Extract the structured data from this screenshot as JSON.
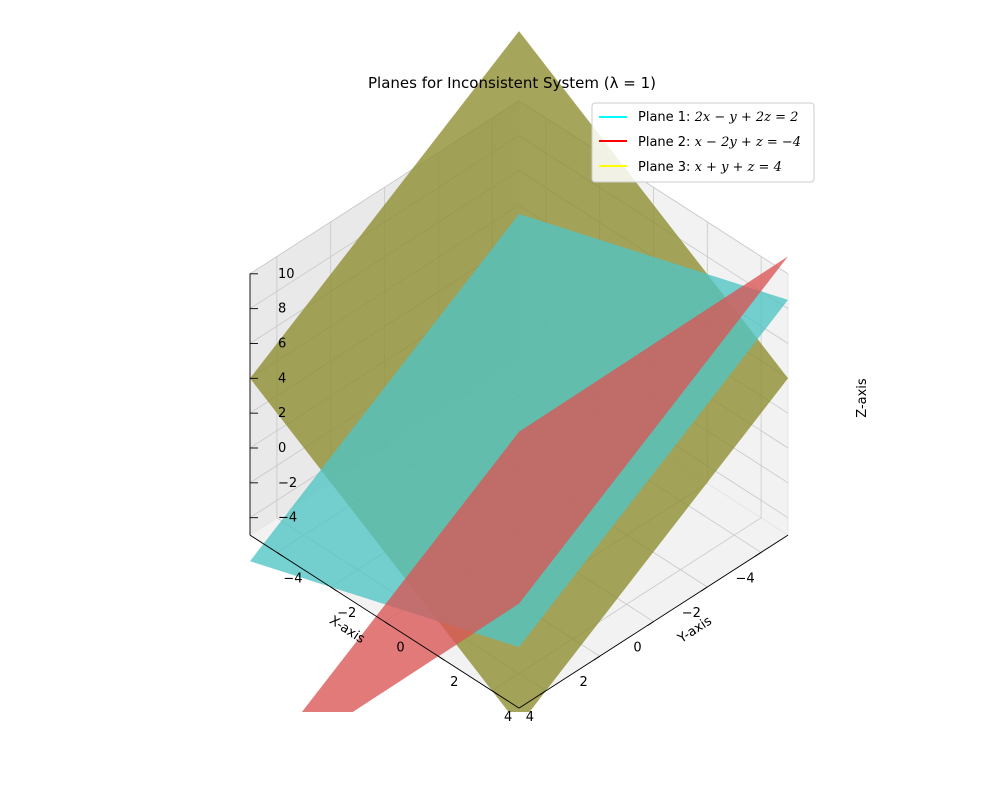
{
  "chart_data": {
    "type": "surface3d",
    "title": "Planes for Inconsistent System (λ = 1)",
    "xlabel": "X-axis",
    "ylabel": "Y-axis",
    "zlabel": "Z-axis",
    "xlim": [
      -5,
      5
    ],
    "ylim": [
      -5,
      5
    ],
    "zlim": [
      -5,
      10
    ],
    "x_ticks": [
      -4,
      -2,
      0,
      2,
      4
    ],
    "y_ticks": [
      -4,
      -2,
      0,
      2,
      4
    ],
    "z_ticks": [
      -4,
      -2,
      0,
      2,
      4,
      6,
      8,
      10
    ],
    "x_tick_labels": [
      "−4",
      "−2",
      "0",
      "2",
      "4"
    ],
    "y_tick_labels": [
      "−4",
      "−2",
      "0",
      "2",
      "4"
    ],
    "z_tick_labels": [
      "−4",
      "−2",
      "0",
      "2",
      "4",
      "6",
      "8",
      "10"
    ],
    "grid": true,
    "legend_position": "top-right",
    "series": [
      {
        "name": "Plane 1: 2x − y + 2z = 2",
        "legend_prefix": "Plane 1: ",
        "equation": "2x − y + 2z = 2",
        "coef": [
          2,
          -1,
          2,
          2
        ],
        "line_color": "#00ffff",
        "surface_color": "#4fc4c4"
      },
      {
        "name": "Plane 2: x − 2y + z = −4",
        "legend_prefix": "Plane 2: ",
        "equation": "x − 2y + z = −4",
        "coef": [
          1,
          -2,
          1,
          -4
        ],
        "line_color": "#ff0000",
        "surface_color": "#db5454"
      },
      {
        "name": "Plane 3: x + y + z = 4",
        "legend_prefix": "Plane 3: ",
        "equation": "x + y + z = 4",
        "coef": [
          1,
          1,
          1,
          4
        ],
        "line_color": "#ffff00",
        "surface_color": "#8c8c2e"
      }
    ]
  }
}
